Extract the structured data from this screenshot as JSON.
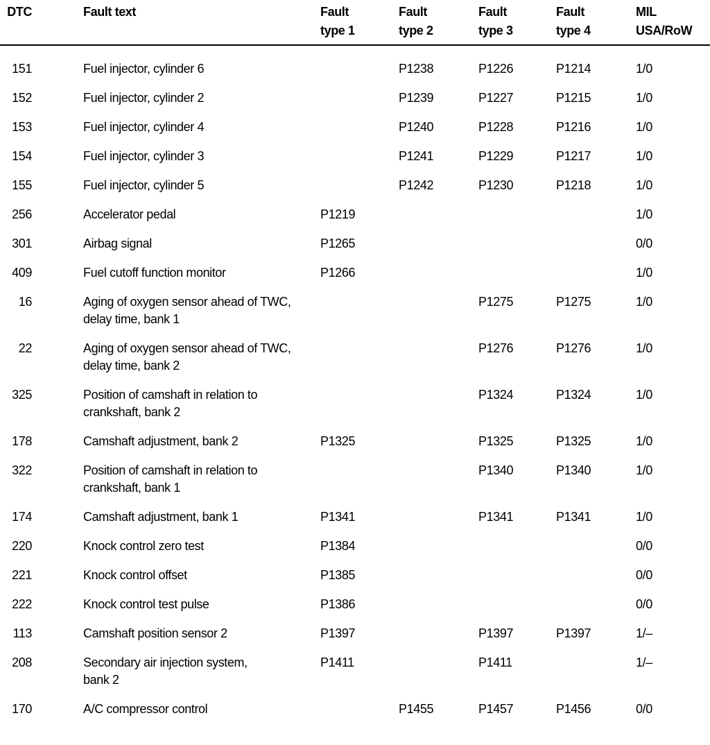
{
  "table": {
    "columns": [
      {
        "line1": "DTC",
        "line2": ""
      },
      {
        "line1": "Fault text",
        "line2": ""
      },
      {
        "line1": "Fault",
        "line2": "type 1"
      },
      {
        "line1": "Fault",
        "line2": "type 2"
      },
      {
        "line1": "Fault",
        "line2": "type 3"
      },
      {
        "line1": "Fault",
        "line2": "type 4"
      },
      {
        "line1": "MIL",
        "line2": "USA/RoW"
      }
    ],
    "rows": [
      {
        "dtc": "151",
        "fault_text": "Fuel injector, cylinder 6",
        "ft1": "",
        "ft2": "P1238",
        "ft3": "P1226",
        "ft4": "P1214",
        "mil": "1/0"
      },
      {
        "dtc": "152",
        "fault_text": "Fuel injector, cylinder 2",
        "ft1": "",
        "ft2": "P1239",
        "ft3": "P1227",
        "ft4": "P1215",
        "mil": "1/0"
      },
      {
        "dtc": "153",
        "fault_text": "Fuel injector, cylinder 4",
        "ft1": "",
        "ft2": "P1240",
        "ft3": "P1228",
        "ft4": "P1216",
        "mil": "1/0"
      },
      {
        "dtc": "154",
        "fault_text": "Fuel injector, cylinder 3",
        "ft1": "",
        "ft2": "P1241",
        "ft3": "P1229",
        "ft4": "P1217",
        "mil": "1/0"
      },
      {
        "dtc": "155",
        "fault_text": "Fuel injector, cylinder 5",
        "ft1": "",
        "ft2": "P1242",
        "ft3": "P1230",
        "ft4": "P1218",
        "mil": "1/0"
      },
      {
        "dtc": "256",
        "fault_text": "Accelerator pedal",
        "ft1": "P1219",
        "ft2": "",
        "ft3": "",
        "ft4": "",
        "mil": "1/0"
      },
      {
        "dtc": "301",
        "fault_text": "Airbag signal",
        "ft1": "P1265",
        "ft2": "",
        "ft3": "",
        "ft4": "",
        "mil": "0/0"
      },
      {
        "dtc": "409",
        "fault_text": "Fuel cutoff function monitor",
        "ft1": "P1266",
        "ft2": "",
        "ft3": "",
        "ft4": "",
        "mil": "1/0"
      },
      {
        "dtc": "16",
        "fault_text": "Aging of oxygen sensor ahead of TWC,\ndelay time, bank 1",
        "ft1": "",
        "ft2": "",
        "ft3": "P1275",
        "ft4": "P1275",
        "mil": "1/0"
      },
      {
        "dtc": "22",
        "fault_text": "Aging of oxygen sensor ahead of TWC,\ndelay time, bank 2",
        "ft1": "",
        "ft2": "",
        "ft3": "P1276",
        "ft4": "P1276",
        "mil": "1/0"
      },
      {
        "dtc": "325",
        "fault_text": "Position of camshaft in relation to\ncrankshaft, bank 2",
        "ft1": "",
        "ft2": "",
        "ft3": "P1324",
        "ft4": "P1324",
        "mil": "1/0"
      },
      {
        "dtc": "178",
        "fault_text": "Camshaft adjustment, bank 2",
        "ft1": "P1325",
        "ft2": "",
        "ft3": "P1325",
        "ft4": "P1325",
        "mil": "1/0"
      },
      {
        "dtc": "322",
        "fault_text": "Position of camshaft in relation to\ncrankshaft, bank 1",
        "ft1": "",
        "ft2": "",
        "ft3": "P1340",
        "ft4": "P1340",
        "mil": "1/0"
      },
      {
        "dtc": "174",
        "fault_text": "Camshaft adjustment, bank 1",
        "ft1": "P1341",
        "ft2": "",
        "ft3": "P1341",
        "ft4": "P1341",
        "mil": "1/0"
      },
      {
        "dtc": "220",
        "fault_text": "Knock control zero test",
        "ft1": "P1384",
        "ft2": "",
        "ft3": "",
        "ft4": "",
        "mil": "0/0"
      },
      {
        "dtc": "221",
        "fault_text": "Knock control offset",
        "ft1": "P1385",
        "ft2": "",
        "ft3": "",
        "ft4": "",
        "mil": "0/0"
      },
      {
        "dtc": "222",
        "fault_text": "Knock control test pulse",
        "ft1": "P1386",
        "ft2": "",
        "ft3": "",
        "ft4": "",
        "mil": "0/0"
      },
      {
        "dtc": "113",
        "fault_text": "Camshaft position sensor 2",
        "ft1": "P1397",
        "ft2": "",
        "ft3": "P1397",
        "ft4": "P1397",
        "mil": "1/–"
      },
      {
        "dtc": "208",
        "fault_text": "Secondary air injection system,\nbank 2",
        "ft1": "P1411",
        "ft2": "",
        "ft3": "P1411",
        "ft4": "",
        "mil": "1/–"
      },
      {
        "dtc": "170",
        "fault_text": "A/C compressor control",
        "ft1": "",
        "ft2": "P1455",
        "ft3": "P1457",
        "ft4": "P1456",
        "mil": "0/0"
      }
    ]
  }
}
